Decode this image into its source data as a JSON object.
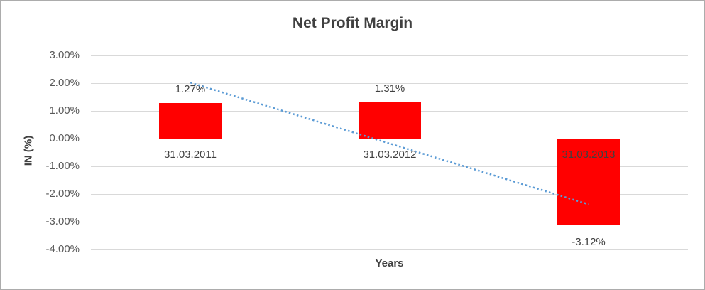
{
  "chart_data": {
    "type": "bar",
    "title": "Net Profit Margin",
    "xlabel": "Years",
    "ylabel": "IN (%)",
    "categories": [
      "31.03.2011",
      "31.03.2012",
      "31.03.2013"
    ],
    "values": [
      1.27,
      1.31,
      -3.12
    ],
    "value_labels": [
      "1.27%",
      "1.31%",
      "-3.12%"
    ],
    "ylim": [
      -4,
      3
    ],
    "yticks": [
      {
        "value": 3,
        "label": "3.00%"
      },
      {
        "value": 2,
        "label": "2.00%"
      },
      {
        "value": 1,
        "label": "1.00%"
      },
      {
        "value": 0,
        "label": "0.00%"
      },
      {
        "value": -1,
        "label": "-1.00%"
      },
      {
        "value": -2,
        "label": "-2.00%"
      },
      {
        "value": -3,
        "label": "-3.00%"
      },
      {
        "value": -4,
        "label": "-4.00%"
      }
    ],
    "grid": true,
    "legend": "none",
    "trendline": {
      "type": "linear",
      "style": "dotted",
      "start_value": 2.02,
      "end_value": -2.37
    }
  },
  "colors": {
    "bar": "#FF0000",
    "trendline": "#5B9BD5",
    "gridline": "#D9D9D9",
    "text": "#404040",
    "tick_text": "#595959",
    "border": "#ACACAC",
    "background": "#FFFFFF"
  }
}
